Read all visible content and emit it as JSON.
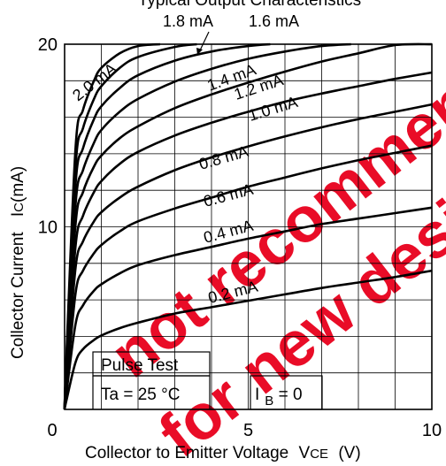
{
  "chart_data": {
    "type": "line",
    "title_partial": "Typical Output Characteristics",
    "xlabel_text": "Collector to Emitter Voltage",
    "xlabel_symbol": "V",
    "xlabel_subscript": "CE",
    "xlabel_unit": "(V)",
    "ylabel_text": "Collector Current",
    "ylabel_symbol": "I",
    "ylabel_subscript": "C",
    "ylabel_unit": "(mA)",
    "xlim": [
      0,
      10
    ],
    "ylim": [
      0,
      20
    ],
    "x_ticks": [
      {
        "value": 0,
        "label": "0"
      },
      {
        "value": 5,
        "label": "5"
      },
      {
        "value": 10,
        "label": "10"
      }
    ],
    "y_ticks": [
      {
        "value": 10,
        "label": "10"
      },
      {
        "value": 20,
        "label": "20"
      }
    ],
    "grid": true,
    "grid_x_step": 1,
    "grid_y_step": 2,
    "annotations": {
      "pulse": "Pulse Test",
      "ta": "Ta = 25 °C",
      "ib_symbol": "I",
      "ib_subscript": "B",
      "ib_value": " = 0"
    },
    "series": [
      {
        "name": "0.2 mA",
        "label": "0.2 mA",
        "x": [
          0.05,
          0.3,
          0.5,
          0.8,
          1,
          1.5,
          2,
          3,
          4,
          5,
          6,
          7,
          8,
          9,
          10
        ],
        "values": [
          0.5,
          2.6,
          3.3,
          3.8,
          4.05,
          4.45,
          4.75,
          5.25,
          5.6,
          5.95,
          6.3,
          6.65,
          6.95,
          7.25,
          7.6
        ]
      },
      {
        "name": "0.4 mA",
        "label": "0.4 mA",
        "x": [
          0.05,
          0.3,
          0.5,
          0.8,
          1,
          1.5,
          2,
          3,
          4,
          5,
          6,
          7,
          8,
          9,
          10
        ],
        "values": [
          0.9,
          4.7,
          5.7,
          6.5,
          6.85,
          7.45,
          7.9,
          8.45,
          8.9,
          9.35,
          9.75,
          10.15,
          10.45,
          10.75,
          11.05
        ]
      },
      {
        "name": "0.6 mA",
        "label": "0.6 mA",
        "x": [
          0.05,
          0.3,
          0.5,
          0.8,
          1,
          1.5,
          2,
          3,
          4,
          5,
          6,
          7,
          8,
          9,
          10
        ],
        "values": [
          1.2,
          6.4,
          7.6,
          8.55,
          9.0,
          9.75,
          10.3,
          11.0,
          11.6,
          12.2,
          12.7,
          13.2,
          13.65,
          14.05,
          14.45
        ]
      },
      {
        "name": "0.8 mA",
        "label": "0.8 mA",
        "x": [
          0.05,
          0.3,
          0.5,
          0.8,
          1,
          1.5,
          2,
          3,
          4,
          5,
          6,
          7,
          8,
          9,
          10
        ],
        "values": [
          1.5,
          7.8,
          9.2,
          10.3,
          10.8,
          11.6,
          12.2,
          13.1,
          13.8,
          14.4,
          14.95,
          15.45,
          15.9,
          16.3,
          16.7
        ]
      },
      {
        "name": "1.0 mA",
        "label": "1.0 mA",
        "x": [
          0.05,
          0.3,
          0.5,
          0.8,
          1,
          1.5,
          2,
          3,
          4,
          5,
          6,
          7,
          8,
          9,
          10
        ],
        "values": [
          1.8,
          9.0,
          10.6,
          11.9,
          12.5,
          13.45,
          14.1,
          15.0,
          15.7,
          16.3,
          16.85,
          17.3,
          17.7,
          18.1,
          18.45
        ]
      },
      {
        "name": "1.2 mA",
        "label": "1.2 mA",
        "x": [
          0.05,
          0.3,
          0.5,
          0.8,
          1,
          1.5,
          2,
          3,
          4,
          5,
          6,
          7,
          8,
          9,
          10
        ],
        "values": [
          2.1,
          10.2,
          11.9,
          13.3,
          13.9,
          14.85,
          15.5,
          16.5,
          17.25,
          17.9,
          18.5,
          19.05,
          19.5,
          19.95,
          20.0
        ]
      },
      {
        "name": "1.4 mA",
        "label": "1.4 mA",
        "x": [
          0.05,
          0.3,
          0.5,
          0.8,
          1,
          1.5,
          2,
          3,
          4,
          5,
          6,
          7,
          7.8
        ],
        "values": [
          2.3,
          11.3,
          13.1,
          14.6,
          15.3,
          16.3,
          17.0,
          17.95,
          18.65,
          19.2,
          19.6,
          19.9,
          20.0
        ]
      },
      {
        "name": "1.6 mA",
        "label": "1.6 mA",
        "x": [
          0.05,
          0.3,
          0.5,
          0.8,
          1,
          1.5,
          2,
          3,
          4,
          5,
          5.6
        ],
        "values": [
          2.6,
          12.4,
          14.3,
          15.9,
          16.6,
          17.6,
          18.3,
          19.1,
          19.6,
          19.9,
          20.0
        ]
      },
      {
        "name": "1.8 mA",
        "label": "1.8 mA",
        "x": [
          0.05,
          0.3,
          0.5,
          0.8,
          1,
          1.5,
          2,
          3,
          3.6
        ],
        "values": [
          2.8,
          13.4,
          15.4,
          17.0,
          17.7,
          18.7,
          19.3,
          19.85,
          20.0
        ]
      },
      {
        "name": "2.0 mA",
        "label": "2.0 mA",
        "x": [
          0.05,
          0.3,
          0.5,
          0.8,
          1,
          1.5,
          2,
          2.6
        ],
        "values": [
          3.0,
          14.4,
          16.4,
          18.0,
          18.7,
          19.5,
          19.9,
          20.0
        ]
      }
    ],
    "watermark": [
      "not recommended",
      "for new design"
    ],
    "watermark_color": "#e8001c",
    "line_color": "#000000"
  }
}
